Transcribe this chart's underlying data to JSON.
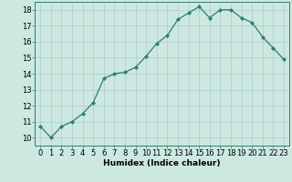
{
  "x": [
    0,
    1,
    2,
    3,
    4,
    5,
    6,
    7,
    8,
    9,
    10,
    11,
    12,
    13,
    14,
    15,
    16,
    17,
    18,
    19,
    20,
    21,
    22,
    23
  ],
  "y": [
    10.7,
    10.0,
    10.7,
    11.0,
    11.5,
    12.2,
    13.7,
    14.0,
    14.1,
    14.4,
    15.1,
    15.9,
    16.4,
    17.4,
    17.8,
    18.2,
    17.5,
    18.0,
    18.0,
    17.5,
    17.2,
    16.3,
    15.6,
    14.9
  ],
  "xlabel": "Humidex (Indice chaleur)",
  "xlim": [
    -0.5,
    23.5
  ],
  "ylim": [
    9.5,
    18.5
  ],
  "yticks": [
    10,
    11,
    12,
    13,
    14,
    15,
    16,
    17,
    18
  ],
  "xticks": [
    0,
    1,
    2,
    3,
    4,
    5,
    6,
    7,
    8,
    9,
    10,
    11,
    12,
    13,
    14,
    15,
    16,
    17,
    18,
    19,
    20,
    21,
    22,
    23
  ],
  "line_color": "#2e7d6e",
  "marker": "D",
  "marker_size": 2.0,
  "bg_color": "#cce8e0",
  "grid_color": "#aacccc",
  "xlabel_fontsize": 6.5,
  "tick_fontsize": 6.0
}
